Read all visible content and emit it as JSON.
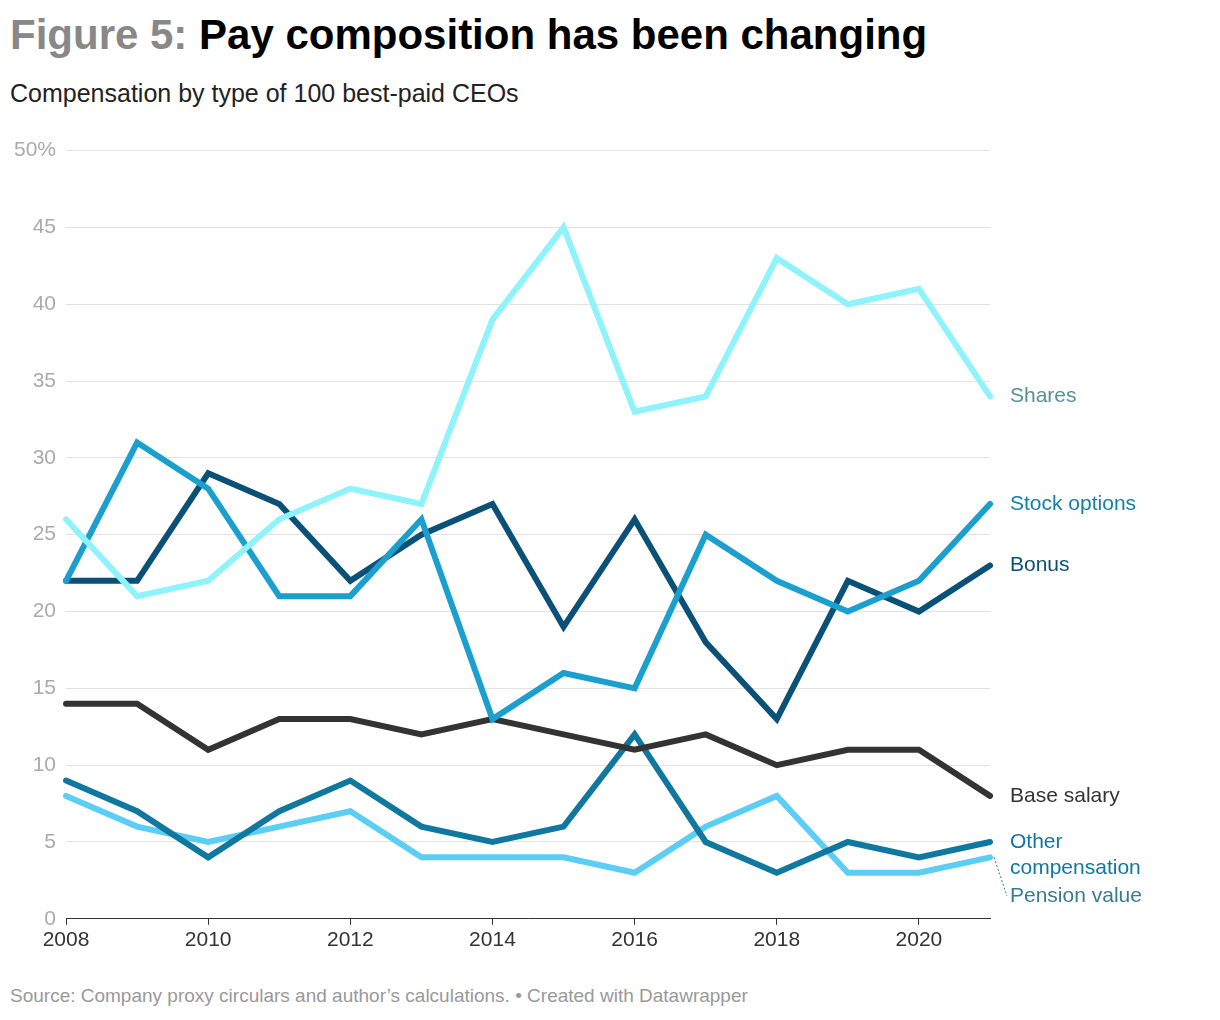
{
  "chart_data": {
    "type": "line",
    "figure_number": "Figure 5:",
    "title": "Pay composition has been changing",
    "subtitle": "Compensation by type of 100 best-paid CEOs",
    "source": "Source: Company proxy circulars and author’s calculations. • Created with Datawrapper",
    "x": [
      2008,
      2009,
      2010,
      2011,
      2012,
      2013,
      2014,
      2015,
      2016,
      2017,
      2018,
      2019,
      2020,
      2021
    ],
    "xlim": [
      2008,
      2021
    ],
    "xticks": [
      2008,
      2010,
      2012,
      2014,
      2016,
      2018,
      2020
    ],
    "ylim": [
      0,
      50
    ],
    "yticks": [
      0,
      5,
      10,
      15,
      20,
      25,
      30,
      35,
      40,
      45,
      {
        "value": 50,
        "label": "50%"
      }
    ],
    "grid": true,
    "series": [
      {
        "name": "Shares",
        "color": "#8ef3fb",
        "values": [
          26,
          21,
          22,
          26,
          28,
          27,
          39,
          45,
          33,
          34,
          43,
          40,
          41,
          34
        ]
      },
      {
        "name": "Stock options",
        "color": "#1a9fce",
        "values": [
          22,
          31,
          28,
          21,
          21,
          26,
          13,
          16,
          15,
          25,
          22,
          20,
          22,
          27
        ]
      },
      {
        "name": "Bonus",
        "color": "#0b5177",
        "values": [
          22,
          22,
          29,
          27,
          22,
          25,
          27,
          19,
          26,
          18,
          13,
          22,
          20,
          23
        ]
      },
      {
        "name": "Base salary",
        "color": "#333333",
        "values": [
          14,
          14,
          11,
          13,
          13,
          12,
          13,
          12,
          11,
          12,
          10,
          11,
          11,
          8
        ]
      },
      {
        "name": "Other compensation",
        "color": "#10779f",
        "values": [
          9,
          7,
          4,
          7,
          9,
          6,
          5,
          6,
          12,
          5,
          3,
          5,
          4,
          5
        ]
      },
      {
        "name": "Pension value",
        "color": "#5ccdf5",
        "values": [
          8,
          6,
          5,
          6,
          7,
          4,
          4,
          4,
          3,
          6,
          8,
          3,
          3,
          4
        ]
      }
    ]
  }
}
